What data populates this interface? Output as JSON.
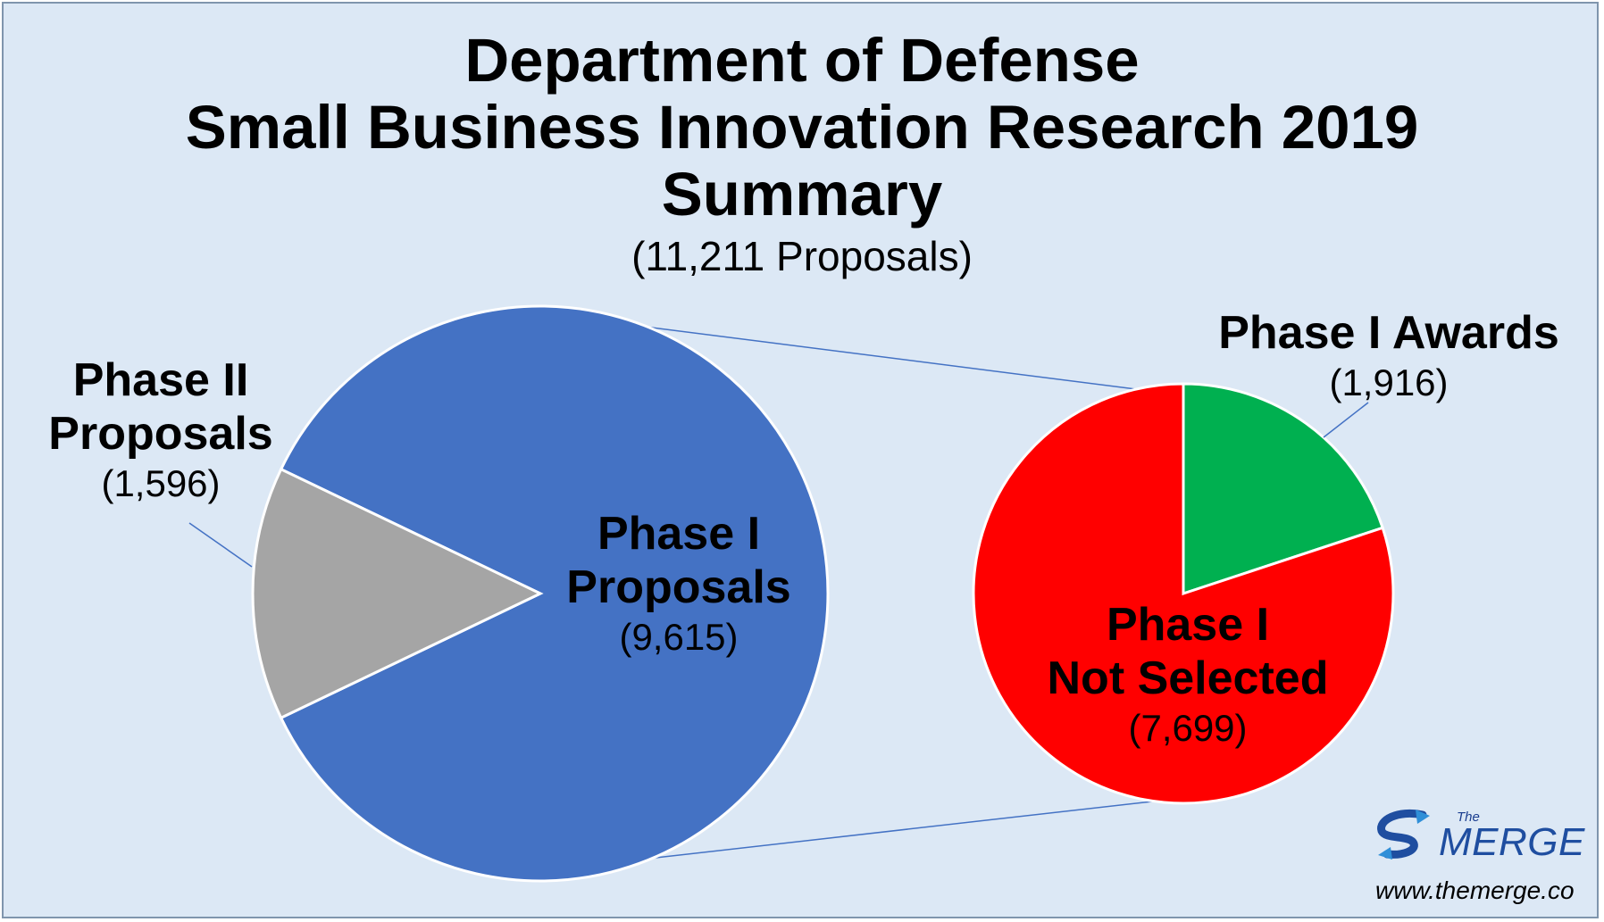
{
  "chart_data": {
    "type": "pie",
    "title_lines": [
      "Department of Defense",
      "Small Business Innovation Research 2019",
      "Summary"
    ],
    "subtitle": "(11,211 Proposals)",
    "primary_pie": {
      "slices": [
        {
          "label_lines": [
            "Phase I",
            "Proposals"
          ],
          "value": 9615,
          "value_label": "(9,615)",
          "color": "#4472c4"
        },
        {
          "label_lines": [
            "Phase II",
            "Proposals"
          ],
          "value": 1596,
          "value_label": "(1,596)",
          "color": "#a5a5a5"
        }
      ]
    },
    "secondary_pie": {
      "expands_slice": "Phase I Proposals",
      "slices": [
        {
          "label_lines": [
            "Phase I Awards"
          ],
          "value": 1916,
          "value_label": "(1,916)",
          "color": "#00b050"
        },
        {
          "label_lines": [
            "Phase I",
            "Not Selected"
          ],
          "value": 7699,
          "value_label": "(7,699)",
          "color": "#ff0000"
        }
      ]
    }
  },
  "branding": {
    "logo_small": "The",
    "logo_large": "MERGE",
    "url": "www.themerge.co"
  }
}
